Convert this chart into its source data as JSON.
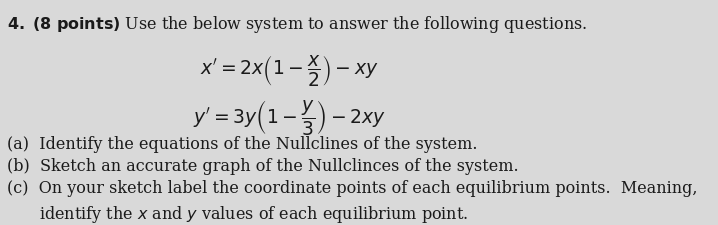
{
  "background_color": "#d9d9d9",
  "number": "4.",
  "points_text": "(8 points)",
  "intro_text": "Use the below system to answer the following questions.",
  "eq1": "x' = 2x\\left(1 - \\dfrac{x}{2}\\right) - xy",
  "eq2": "y' = 3y\\left(1 - \\dfrac{y}{3}\\right) - 2xy",
  "part_a": "(a)  Identify the equations of the Nullclines of the system.",
  "part_b": "(b)  Sketch an accurate graph of the Nullclinces of the system.",
  "part_c_line1": "(c)  On your sketch label the coordinate points of each equilibrium points.  Meaning,",
  "part_c_line2": "      identify the \\mathit{x} and \\mathit{y} values of each equilibrium point.",
  "text_color": "#1a1a1a",
  "font_size_main": 11.5,
  "font_size_eq": 13.5
}
